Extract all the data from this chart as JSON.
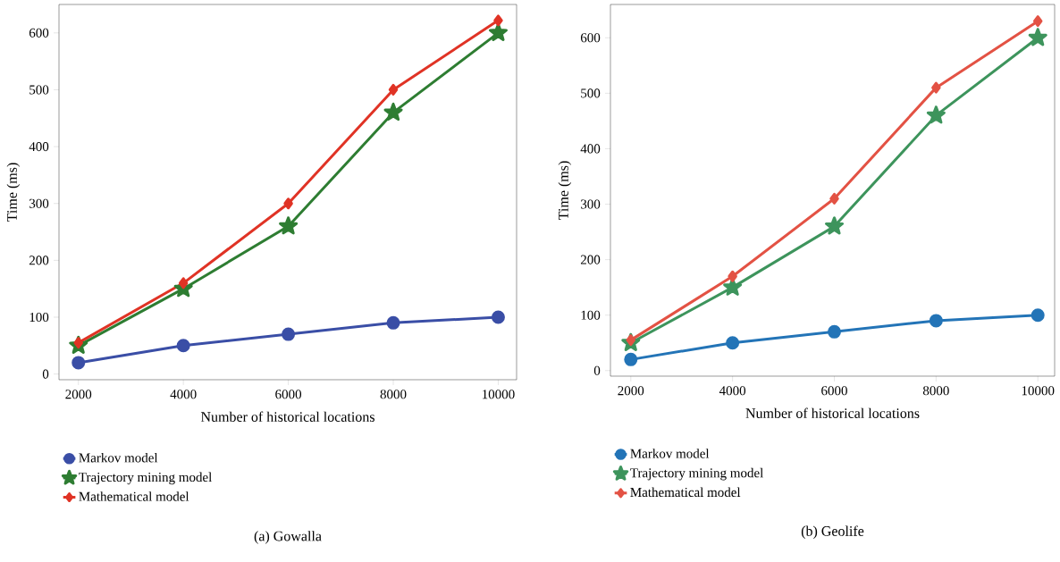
{
  "chart_data": [
    {
      "type": "line",
      "title": "(a) Gowalla",
      "xlabel": "Number of historical locations",
      "ylabel": "Time (ms)",
      "x": [
        2000,
        4000,
        6000,
        8000,
        10000
      ],
      "xlim": [
        1630,
        10350
      ],
      "ylim": [
        -10,
        650
      ],
      "xticks": [
        2000,
        4000,
        6000,
        8000,
        10000
      ],
      "yticks": [
        0,
        100,
        200,
        300,
        400,
        500,
        600
      ],
      "legend": "bottom",
      "grid": false,
      "line_style": "solid",
      "series": [
        {
          "name": "Markov model",
          "color": "#3a4ea6",
          "marker": "circle",
          "values": [
            20,
            50,
            70,
            90,
            100
          ]
        },
        {
          "name": "Trajectory mining model",
          "color": "#2e7d32",
          "marker": "star",
          "values": [
            50,
            150,
            260,
            460,
            600
          ]
        },
        {
          "name": "Mathematical model",
          "color": "#e03325",
          "marker": "diamond",
          "values": [
            55,
            160,
            300,
            500,
            622
          ]
        }
      ]
    },
    {
      "type": "line",
      "title": "(b) Geolife",
      "xlabel": "Number of historical locations",
      "ylabel": "Time (ms)",
      "x": [
        2000,
        4000,
        6000,
        8000,
        10000
      ],
      "xlim": [
        1600,
        10330
      ],
      "ylim": [
        -10,
        660
      ],
      "xticks": [
        2000,
        4000,
        6000,
        8000,
        10000
      ],
      "yticks": [
        0,
        100,
        200,
        300,
        400,
        500,
        600
      ],
      "legend": "bottom",
      "grid": false,
      "line_style": "solid",
      "series": [
        {
          "name": "Markov model",
          "color": "#2374b7",
          "marker": "circle",
          "values": [
            20,
            50,
            70,
            90,
            100
          ]
        },
        {
          "name": "Trajectory mining model",
          "color": "#3d945c",
          "marker": "star",
          "values": [
            50,
            150,
            260,
            460,
            600
          ]
        },
        {
          "name": "Mathematical model",
          "color": "#e35244",
          "marker": "diamond",
          "values": [
            55,
            170,
            310,
            510,
            630
          ]
        }
      ]
    }
  ]
}
